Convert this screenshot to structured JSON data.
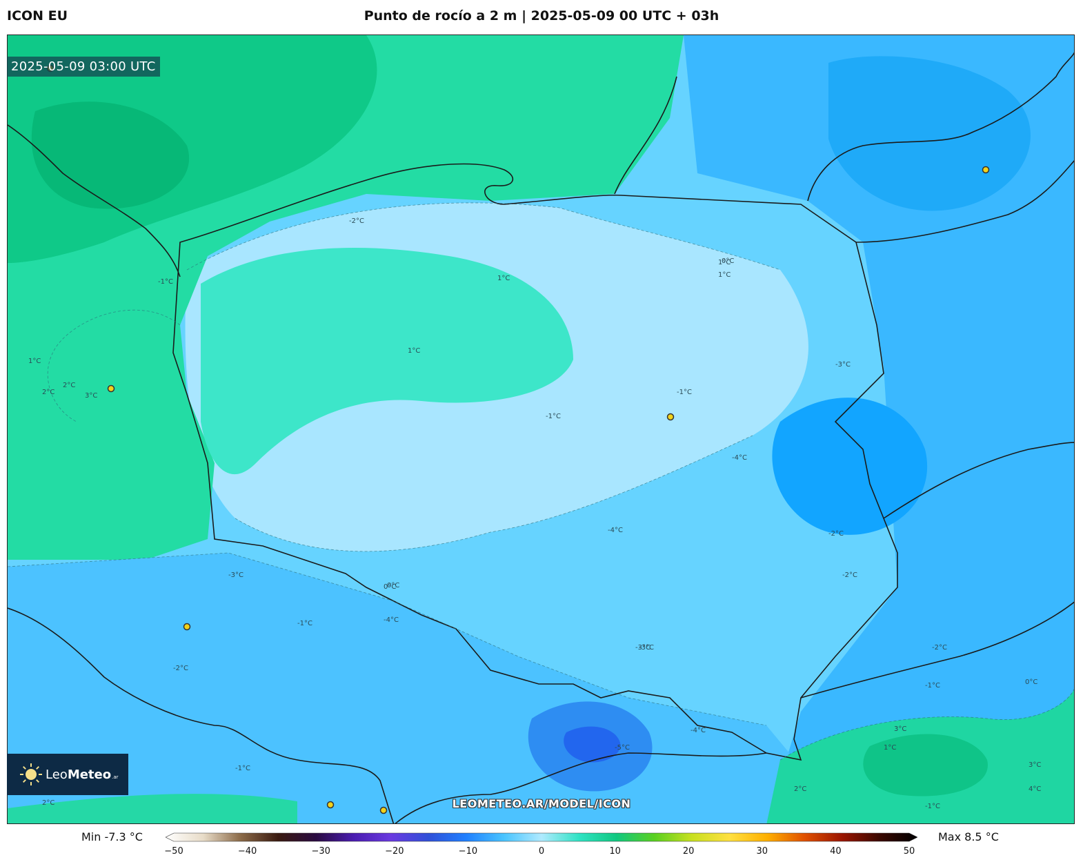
{
  "header": {
    "model": "ICON EU",
    "title": "Punto de rocío a 2 m | 2025-05-09 00 UTC + 03h"
  },
  "map": {
    "timestamp": "2025-05-09 03:00 UTC",
    "watermark": "LEOMETEO.AR/MODEL/ICON",
    "contour_labels": [
      "2°C",
      "3°C",
      "1°C",
      "2°C",
      "-1°C",
      "1°C",
      "-1°C",
      "0°C",
      "1°C",
      "-1°C",
      "1°C",
      "-2°C",
      "-4°C",
      "-3°C",
      "-3°C",
      "-2°C",
      "1°C",
      "0°C",
      "-3°C",
      "-2°C",
      "-4°C",
      "-2°C",
      "-1°C",
      "3°C",
      "2°C",
      "1°C",
      "-2°C",
      "-4°C",
      "-1°C",
      "-1°C",
      "0°C",
      "-5°C",
      "3°C",
      "4°C",
      "-4°C",
      "-3°C",
      "2°C",
      "-1°C",
      "0°C"
    ],
    "legend_colors": {
      "cold_low": "#b3e9ff",
      "cold_mid": "#5ccfff",
      "cold_deep": "#1fb1ff",
      "cold_core": "#2266ee",
      "near_zero": "#3de6c9",
      "warm": "#1ad9a0",
      "warm_high": "#0bc78c",
      "border": "#1a1a1a"
    }
  },
  "logo": {
    "brand_light": "Leo",
    "brand_bold": "Meteo",
    "tld": ".ar"
  },
  "colorbar": {
    "min_label": "Min -7.3 °C",
    "max_label": "Max 8.5 °C",
    "ticks": [
      "−50",
      "−40",
      "−30",
      "−20",
      "−10",
      "0",
      "10",
      "20",
      "30",
      "40",
      "50"
    ],
    "tick_values": [
      -50,
      -40,
      -30,
      -20,
      -10,
      0,
      10,
      20,
      30,
      40,
      50
    ],
    "range": [
      -50,
      50
    ],
    "stops": [
      "#ffffff",
      "#e8dcc8",
      "#8b6a48",
      "#3a1a10",
      "#2a0a40",
      "#4a1cb0",
      "#6a3ae0",
      "#3050d8",
      "#2080ff",
      "#49c4ff",
      "#b0eaff",
      "#2fe3c4",
      "#10c880",
      "#5ad020",
      "#c8e020",
      "#ffe040",
      "#ffb000",
      "#e05000",
      "#9a1500",
      "#3a0800",
      "#000000"
    ]
  }
}
